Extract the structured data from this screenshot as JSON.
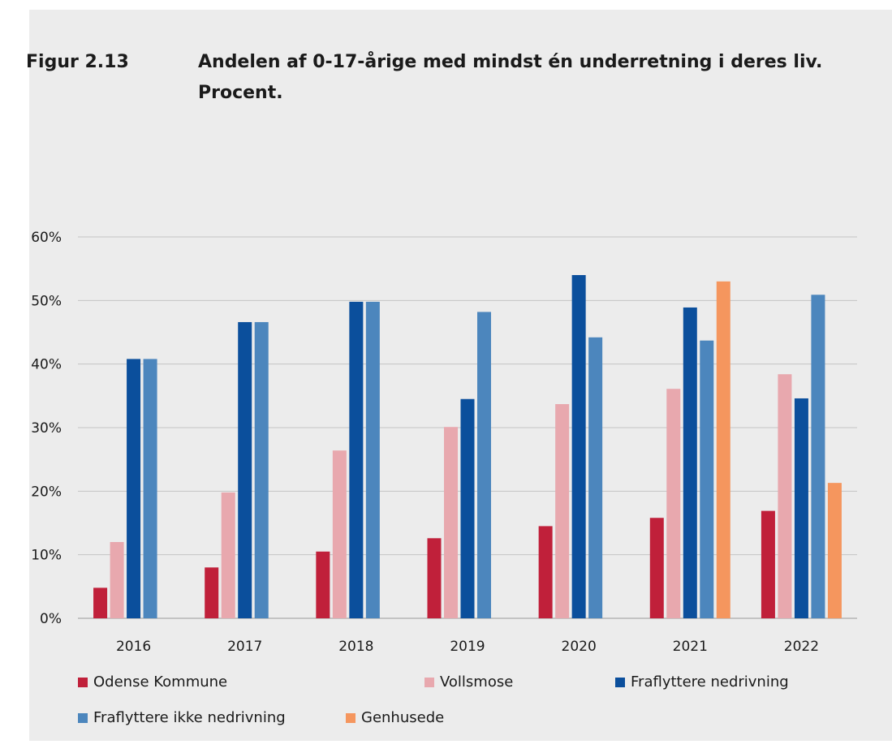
{
  "figure": {
    "number": "Figur 2.13",
    "title": "Andelen af 0-17-årige med mindst én underretning i deres liv. Procent."
  },
  "chart_data": {
    "type": "bar",
    "categories": [
      "2016",
      "2017",
      "2018",
      "2019",
      "2020",
      "2021",
      "2022"
    ],
    "ylim": [
      0,
      60
    ],
    "yticks": [
      0,
      10,
      20,
      30,
      40,
      50,
      60
    ],
    "ytick_labels": [
      "0%",
      "10%",
      "20%",
      "30%",
      "40%",
      "50%",
      "60%"
    ],
    "grid": true,
    "legend_position": "bottom",
    "series": [
      {
        "name": "Odense Kommune",
        "color": "#c0203a",
        "values": [
          4.8,
          8.0,
          10.5,
          12.6,
          14.5,
          15.8,
          16.9
        ]
      },
      {
        "name": "Vollsmose",
        "color": "#e8a8ae",
        "values": [
          12.0,
          19.8,
          26.4,
          30.1,
          33.7,
          36.1,
          38.4
        ]
      },
      {
        "name": "Fraflyttere nedrivning",
        "color": "#0b4f9c",
        "values": [
          40.8,
          46.6,
          49.8,
          34.5,
          54.0,
          48.9,
          34.6
        ]
      },
      {
        "name": "Fraflyttere ikke nedrivning",
        "color": "#4c86bd",
        "values": [
          40.8,
          46.6,
          49.8,
          48.2,
          44.2,
          43.7,
          50.9
        ]
      },
      {
        "name": "Genhusede",
        "color": "#f5965e",
        "values": [
          null,
          null,
          null,
          null,
          null,
          53.0,
          21.3
        ]
      }
    ]
  }
}
